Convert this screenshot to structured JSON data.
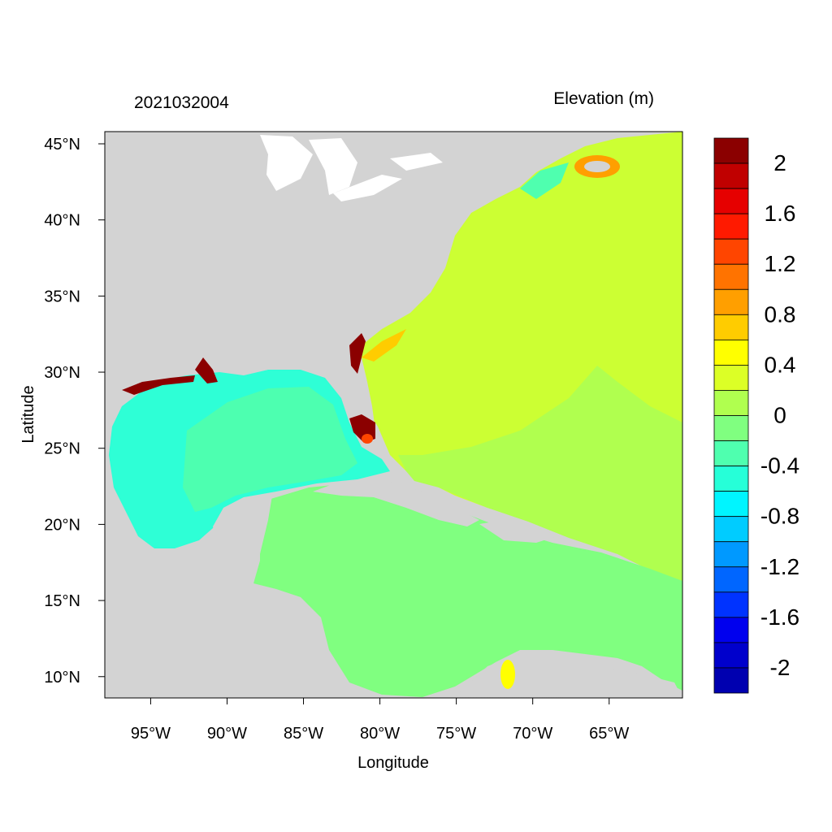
{
  "header": {
    "timestamp": "2021032004",
    "variable_label": "Elevation (m)"
  },
  "axes": {
    "xlabel": "Longitude",
    "ylabel": "Latitude",
    "lon_ticks": [
      {
        "value": -95,
        "label": "95°W"
      },
      {
        "value": -90,
        "label": "90°W"
      },
      {
        "value": -85,
        "label": "85°W"
      },
      {
        "value": -80,
        "label": "80°W"
      },
      {
        "value": -75,
        "label": "75°W"
      },
      {
        "value": -70,
        "label": "70°W"
      },
      {
        "value": -65,
        "label": "65°W"
      }
    ],
    "lat_ticks": [
      {
        "value": 45,
        "label": "45°N"
      },
      {
        "value": 40,
        "label": "40°N"
      },
      {
        "value": 35,
        "label": "35°N"
      },
      {
        "value": 30,
        "label": "30°N"
      },
      {
        "value": 25,
        "label": "25°N"
      },
      {
        "value": 20,
        "label": "20°N"
      },
      {
        "value": 15,
        "label": "15°N"
      },
      {
        "value": 10,
        "label": "10°N"
      }
    ],
    "lon_range": [
      -98,
      -60.2
    ],
    "lat_range": [
      8.6,
      45.8
    ]
  },
  "colorbar": {
    "bins": [
      {
        "color": "#8b0000"
      },
      {
        "color": "#c00000"
      },
      {
        "color": "#e60000"
      },
      {
        "color": "#ff1a00"
      },
      {
        "color": "#ff4500"
      },
      {
        "color": "#ff7300"
      },
      {
        "color": "#ff9f00"
      },
      {
        "color": "#ffcc00"
      },
      {
        "color": "#ffff00"
      },
      {
        "color": "#dcff26"
      },
      {
        "color": "#b0ff4f"
      },
      {
        "color": "#80ff80"
      },
      {
        "color": "#4fffaf"
      },
      {
        "color": "#26ffd8"
      },
      {
        "color": "#00f5ff"
      },
      {
        "color": "#00ccff"
      },
      {
        "color": "#0099ff"
      },
      {
        "color": "#0066ff"
      },
      {
        "color": "#0033ff"
      },
      {
        "color": "#0000ee"
      },
      {
        "color": "#0000cc"
      },
      {
        "color": "#0000b0"
      }
    ],
    "labels": [
      "2",
      "1.6",
      "1.2",
      "0.8",
      "0.4",
      "0",
      "-0.4",
      "-0.8",
      "-1.2",
      "-1.6",
      "-2"
    ]
  },
  "map_colors": {
    "land": "#d3d3d3",
    "gulf": "#2effd6",
    "gulf_center": "#4dffb0",
    "atlantic": "#ccff33",
    "atlantic_south": "#b0ff4f",
    "caribbean": "#80ff80",
    "lakes": "#ffffff",
    "coast_surge": "#8b0000"
  }
}
